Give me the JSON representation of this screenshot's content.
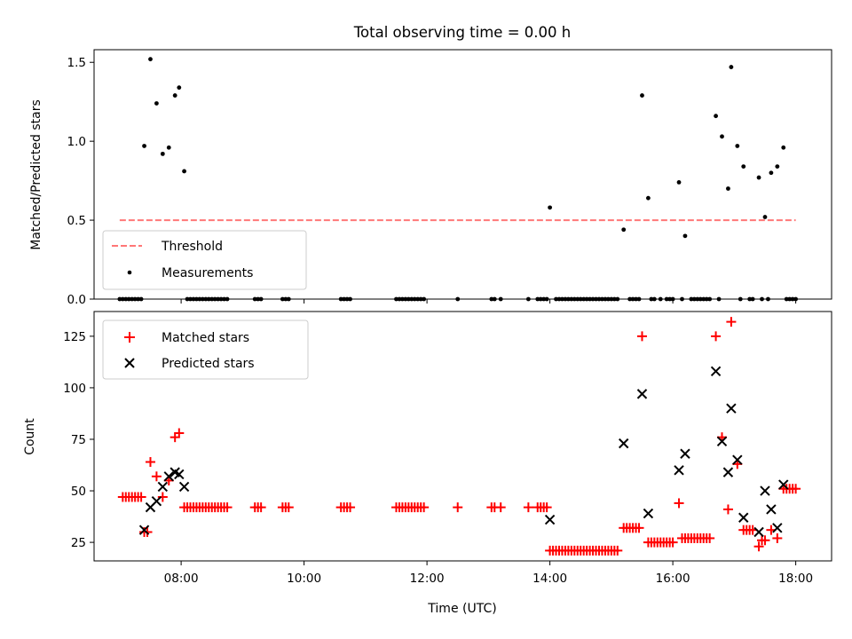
{
  "title": "Total observing time = 0.00 h",
  "xlabel": "Time (UTC)",
  "x_ticks": [
    "08:00",
    "10:00",
    "12:00",
    "14:00",
    "16:00",
    "18:00"
  ],
  "colors": {
    "threshold": "#ff7777",
    "matched": "#ff0000",
    "predicted": "#000000",
    "measurements": "#000000"
  },
  "chart_data": [
    {
      "type": "scatter",
      "name": "ratio-panel",
      "ylabel": "Matched/Predicted stars",
      "y_ticks": [
        "0.0",
        "0.5",
        "1.0",
        "1.5"
      ],
      "xlim": [
        "06:35",
        "18:35"
      ],
      "ylim": [
        0,
        1.58
      ],
      "legend": {
        "placement": "lower-left",
        "entries": [
          "Threshold",
          "Measurements"
        ]
      },
      "threshold": {
        "name": "Threshold",
        "x": [
          "07:00",
          "18:00"
        ],
        "y": 0.5
      },
      "measurements": {
        "name": "Measurements",
        "points": [
          [
            "07:00",
            0
          ],
          [
            "07:03",
            0
          ],
          [
            "07:06",
            0
          ],
          [
            "07:09",
            0
          ],
          [
            "07:12",
            0
          ],
          [
            "07:15",
            0
          ],
          [
            "07:18",
            0
          ],
          [
            "07:21",
            0
          ],
          [
            "07:24",
            0.97
          ],
          [
            "07:30",
            1.52
          ],
          [
            "07:36",
            1.24
          ],
          [
            "07:42",
            0.92
          ],
          [
            "07:48",
            0.96
          ],
          [
            "07:54",
            1.29
          ],
          [
            "07:58",
            1.34
          ],
          [
            "08:03",
            0.81
          ],
          [
            "08:06",
            0
          ],
          [
            "08:09",
            0
          ],
          [
            "08:12",
            0
          ],
          [
            "08:15",
            0
          ],
          [
            "08:18",
            0
          ],
          [
            "08:21",
            0
          ],
          [
            "08:24",
            0
          ],
          [
            "08:27",
            0
          ],
          [
            "08:30",
            0
          ],
          [
            "08:33",
            0
          ],
          [
            "08:36",
            0
          ],
          [
            "08:39",
            0
          ],
          [
            "08:42",
            0
          ],
          [
            "08:45",
            0
          ],
          [
            "09:12",
            0
          ],
          [
            "09:15",
            0
          ],
          [
            "09:18",
            0
          ],
          [
            "09:39",
            0
          ],
          [
            "09:42",
            0
          ],
          [
            "09:45",
            0
          ],
          [
            "10:36",
            0
          ],
          [
            "10:39",
            0
          ],
          [
            "10:42",
            0
          ],
          [
            "10:45",
            0
          ],
          [
            "11:30",
            0
          ],
          [
            "11:33",
            0
          ],
          [
            "11:36",
            0
          ],
          [
            "11:39",
            0
          ],
          [
            "11:42",
            0
          ],
          [
            "11:45",
            0
          ],
          [
            "11:48",
            0
          ],
          [
            "11:51",
            0
          ],
          [
            "11:54",
            0
          ],
          [
            "11:57",
            0
          ],
          [
            "12:30",
            0
          ],
          [
            "13:03",
            0
          ],
          [
            "13:06",
            0
          ],
          [
            "13:12",
            0
          ],
          [
            "13:39",
            0
          ],
          [
            "13:48",
            0
          ],
          [
            "13:51",
            0
          ],
          [
            "13:54",
            0
          ],
          [
            "13:57",
            0
          ],
          [
            "14:00",
            0.58
          ],
          [
            "14:06",
            0
          ],
          [
            "14:09",
            0
          ],
          [
            "14:12",
            0
          ],
          [
            "14:15",
            0
          ],
          [
            "14:18",
            0
          ],
          [
            "14:21",
            0
          ],
          [
            "14:24",
            0
          ],
          [
            "14:27",
            0
          ],
          [
            "14:30",
            0
          ],
          [
            "14:33",
            0
          ],
          [
            "14:36",
            0
          ],
          [
            "14:39",
            0
          ],
          [
            "14:42",
            0
          ],
          [
            "14:45",
            0
          ],
          [
            "14:48",
            0
          ],
          [
            "14:51",
            0
          ],
          [
            "14:54",
            0
          ],
          [
            "14:57",
            0
          ],
          [
            "15:00",
            0
          ],
          [
            "15:03",
            0
          ],
          [
            "15:06",
            0
          ],
          [
            "15:12",
            0.44
          ],
          [
            "15:18",
            0
          ],
          [
            "15:21",
            0
          ],
          [
            "15:24",
            0
          ],
          [
            "15:27",
            0
          ],
          [
            "15:30",
            1.29
          ],
          [
            "15:36",
            0.64
          ],
          [
            "15:39",
            0
          ],
          [
            "15:42",
            0
          ],
          [
            "15:48",
            0
          ],
          [
            "15:54",
            0
          ],
          [
            "15:57",
            0
          ],
          [
            "16:00",
            0
          ],
          [
            "16:06",
            0.74
          ],
          [
            "16:09",
            0
          ],
          [
            "16:12",
            0.4
          ],
          [
            "16:18",
            0
          ],
          [
            "16:21",
            0
          ],
          [
            "16:24",
            0
          ],
          [
            "16:27",
            0
          ],
          [
            "16:30",
            0
          ],
          [
            "16:33",
            0
          ],
          [
            "16:36",
            0
          ],
          [
            "16:42",
            1.16
          ],
          [
            "16:45",
            0
          ],
          [
            "16:48",
            1.03
          ],
          [
            "16:54",
            0.7
          ],
          [
            "16:57",
            1.47
          ],
          [
            "17:03",
            0.97
          ],
          [
            "17:06",
            0
          ],
          [
            "17:09",
            0.84
          ],
          [
            "17:15",
            0
          ],
          [
            "17:18",
            0
          ],
          [
            "17:24",
            0.77
          ],
          [
            "17:27",
            0
          ],
          [
            "17:30",
            0.52
          ],
          [
            "17:33",
            0
          ],
          [
            "17:36",
            0.8
          ],
          [
            "17:42",
            0.84
          ],
          [
            "17:48",
            0.96
          ],
          [
            "17:51",
            0
          ],
          [
            "17:54",
            0
          ],
          [
            "17:57",
            0
          ],
          [
            "18:00",
            0
          ]
        ]
      }
    },
    {
      "type": "scatter",
      "name": "count-panel",
      "ylabel": "Count",
      "y_ticks": [
        "25",
        "50",
        "75",
        "100",
        "125"
      ],
      "xlim": [
        "06:35",
        "18:35"
      ],
      "ylim": [
        16,
        137
      ],
      "legend": {
        "placement": "upper-left",
        "entries": [
          "Matched stars",
          "Predicted stars"
        ]
      },
      "series": [
        {
          "name": "Matched stars",
          "marker": "plus",
          "points": [
            [
              "07:03",
              47
            ],
            [
              "07:06",
              47
            ],
            [
              "07:09",
              47
            ],
            [
              "07:12",
              47
            ],
            [
              "07:15",
              47
            ],
            [
              "07:18",
              47
            ],
            [
              "07:21",
              47
            ],
            [
              "07:24",
              30
            ],
            [
              "07:27",
              30
            ],
            [
              "07:30",
              64
            ],
            [
              "07:36",
              57
            ],
            [
              "07:42",
              47
            ],
            [
              "07:48",
              55
            ],
            [
              "07:54",
              76
            ],
            [
              "07:58",
              78
            ],
            [
              "08:03",
              42
            ],
            [
              "08:06",
              42
            ],
            [
              "08:09",
              42
            ],
            [
              "08:12",
              42
            ],
            [
              "08:15",
              42
            ],
            [
              "08:18",
              42
            ],
            [
              "08:21",
              42
            ],
            [
              "08:24",
              42
            ],
            [
              "08:27",
              42
            ],
            [
              "08:30",
              42
            ],
            [
              "08:33",
              42
            ],
            [
              "08:36",
              42
            ],
            [
              "08:39",
              42
            ],
            [
              "08:42",
              42
            ],
            [
              "08:45",
              42
            ],
            [
              "09:12",
              42
            ],
            [
              "09:15",
              42
            ],
            [
              "09:18",
              42
            ],
            [
              "09:39",
              42
            ],
            [
              "09:42",
              42
            ],
            [
              "09:45",
              42
            ],
            [
              "10:36",
              42
            ],
            [
              "10:39",
              42
            ],
            [
              "10:42",
              42
            ],
            [
              "10:45",
              42
            ],
            [
              "11:30",
              42
            ],
            [
              "11:33",
              42
            ],
            [
              "11:36",
              42
            ],
            [
              "11:39",
              42
            ],
            [
              "11:42",
              42
            ],
            [
              "11:45",
              42
            ],
            [
              "11:48",
              42
            ],
            [
              "11:51",
              42
            ],
            [
              "11:54",
              42
            ],
            [
              "11:57",
              42
            ],
            [
              "12:30",
              42
            ],
            [
              "13:03",
              42
            ],
            [
              "13:06",
              42
            ],
            [
              "13:12",
              42
            ],
            [
              "13:39",
              42
            ],
            [
              "13:48",
              42
            ],
            [
              "13:51",
              42
            ],
            [
              "13:54",
              42
            ],
            [
              "13:57",
              42
            ],
            [
              "14:00",
              21
            ],
            [
              "14:03",
              21
            ],
            [
              "14:06",
              21
            ],
            [
              "14:09",
              21
            ],
            [
              "14:12",
              21
            ],
            [
              "14:15",
              21
            ],
            [
              "14:18",
              21
            ],
            [
              "14:21",
              21
            ],
            [
              "14:24",
              21
            ],
            [
              "14:27",
              21
            ],
            [
              "14:30",
              21
            ],
            [
              "14:33",
              21
            ],
            [
              "14:36",
              21
            ],
            [
              "14:39",
              21
            ],
            [
              "14:42",
              21
            ],
            [
              "14:45",
              21
            ],
            [
              "14:48",
              21
            ],
            [
              "14:51",
              21
            ],
            [
              "14:54",
              21
            ],
            [
              "14:57",
              21
            ],
            [
              "15:00",
              21
            ],
            [
              "15:03",
              21
            ],
            [
              "15:06",
              21
            ],
            [
              "15:12",
              32
            ],
            [
              "15:15",
              32
            ],
            [
              "15:18",
              32
            ],
            [
              "15:21",
              32
            ],
            [
              "15:24",
              32
            ],
            [
              "15:27",
              32
            ],
            [
              "15:30",
              125
            ],
            [
              "15:36",
              25
            ],
            [
              "15:39",
              25
            ],
            [
              "15:42",
              25
            ],
            [
              "15:45",
              25
            ],
            [
              "15:48",
              25
            ],
            [
              "15:51",
              25
            ],
            [
              "15:54",
              25
            ],
            [
              "15:57",
              25
            ],
            [
              "16:00",
              25
            ],
            [
              "16:06",
              44
            ],
            [
              "16:09",
              27
            ],
            [
              "16:12",
              27
            ],
            [
              "16:15",
              27
            ],
            [
              "16:18",
              27
            ],
            [
              "16:21",
              27
            ],
            [
              "16:24",
              27
            ],
            [
              "16:27",
              27
            ],
            [
              "16:30",
              27
            ],
            [
              "16:33",
              27
            ],
            [
              "16:36",
              27
            ],
            [
              "16:42",
              125
            ],
            [
              "16:48",
              76
            ],
            [
              "16:54",
              41
            ],
            [
              "16:57",
              132
            ],
            [
              "17:03",
              63
            ],
            [
              "17:09",
              31
            ],
            [
              "17:12",
              31
            ],
            [
              "17:15",
              31
            ],
            [
              "17:18",
              31
            ],
            [
              "17:24",
              23
            ],
            [
              "17:27",
              26
            ],
            [
              "17:30",
              26
            ],
            [
              "17:36",
              31
            ],
            [
              "17:42",
              27
            ],
            [
              "17:48",
              51
            ],
            [
              "17:51",
              51
            ],
            [
              "17:54",
              51
            ],
            [
              "17:57",
              51
            ],
            [
              "18:00",
              51
            ]
          ]
        },
        {
          "name": "Predicted stars",
          "marker": "x",
          "points": [
            [
              "07:24",
              31
            ],
            [
              "07:30",
              42
            ],
            [
              "07:36",
              45
            ],
            [
              "07:42",
              52
            ],
            [
              "07:48",
              57
            ],
            [
              "07:54",
              59
            ],
            [
              "07:58",
              58
            ],
            [
              "08:03",
              52
            ],
            [
              "14:00",
              36
            ],
            [
              "15:12",
              73
            ],
            [
              "15:30",
              97
            ],
            [
              "15:36",
              39
            ],
            [
              "16:06",
              60
            ],
            [
              "16:12",
              68
            ],
            [
              "16:42",
              108
            ],
            [
              "16:48",
              74
            ],
            [
              "16:54",
              59
            ],
            [
              "16:57",
              90
            ],
            [
              "17:03",
              65
            ],
            [
              "17:09",
              37
            ],
            [
              "17:24",
              30
            ],
            [
              "17:30",
              50
            ],
            [
              "17:36",
              41
            ],
            [
              "17:42",
              32
            ],
            [
              "17:48",
              53
            ]
          ]
        }
      ]
    }
  ]
}
